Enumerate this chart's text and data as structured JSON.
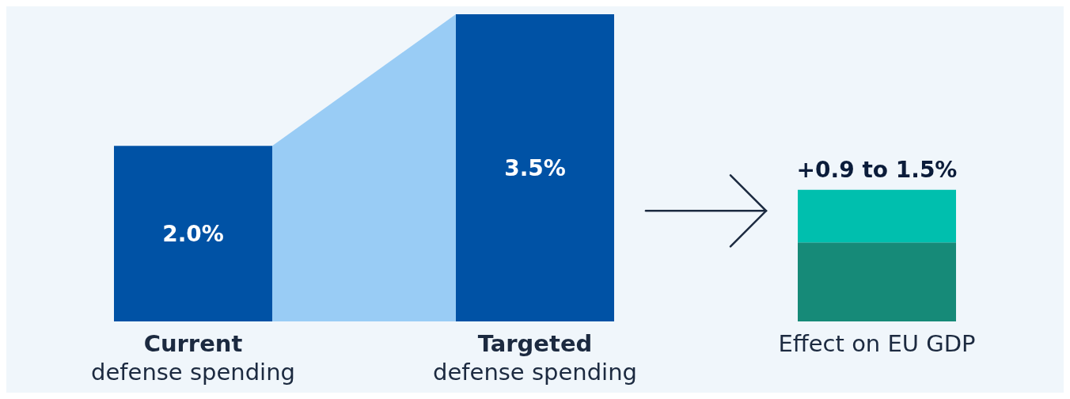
{
  "chart_data": {
    "type": "bar",
    "stacked": true,
    "categories": [
      "Current\ndefense spending",
      "Targeted\ndefense spending",
      "Effect on EU GDP"
    ],
    "series": [
      {
        "values": [
          2.0,
          3.5,
          0.9
        ],
        "colors": [
          "#0052a5",
          "#0052a5",
          "#168a78"
        ],
        "value_labels": [
          "2.0%",
          "3.5%",
          null
        ]
      },
      {
        "values": [
          null,
          null,
          0.6
        ],
        "color": "#00bfae"
      }
    ],
    "totals": [
      null,
      null,
      "+0.9 to 1.5%"
    ]
  }
}
